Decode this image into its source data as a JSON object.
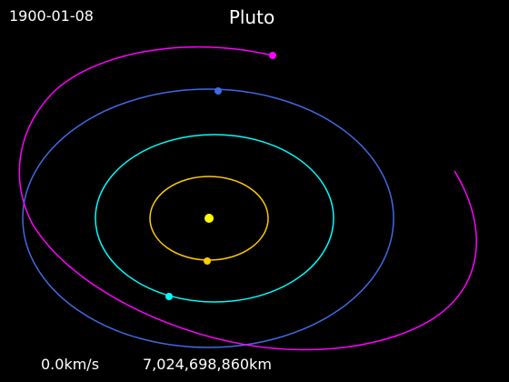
{
  "date": "1900-01-08",
  "title": "Pluto",
  "speed": "0.0km/s",
  "distance": "7,024,698,860km",
  "colors": {
    "background": "#000000",
    "sun": "#ffff00",
    "orbit_1": "#ffcc00",
    "orbit_2": "#00ffff",
    "orbit_3": "#4169e1",
    "orbit_4": "#ff00ff",
    "text": "#ffffff"
  }
}
